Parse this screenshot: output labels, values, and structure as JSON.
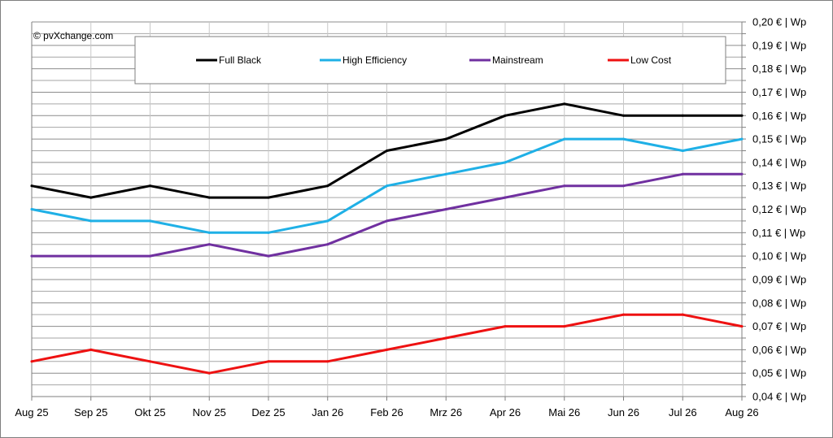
{
  "chart_data": {
    "type": "line",
    "title": "",
    "xlabel": "",
    "ylabel": "",
    "copyright": "© pvXchange.com",
    "categories": [
      "Aug 25",
      "Sep 25",
      "Okt 25",
      "Nov 25",
      "Dez 25",
      "Jan 26",
      "Feb 26",
      "Mrz 26",
      "Apr 26",
      "Mai 26",
      "Jun 26",
      "Jul 26",
      "Aug 26"
    ],
    "ylim": [
      0.04,
      0.2
    ],
    "y_ticks": [
      0.04,
      0.05,
      0.06,
      0.07,
      0.08,
      0.09,
      0.1,
      0.11,
      0.12,
      0.13,
      0.14,
      0.15,
      0.16,
      0.17,
      0.18,
      0.19,
      0.2
    ],
    "y_tick_labels": [
      "0,04 € | Wp",
      "0,05 € | Wp",
      "0,06 € | Wp",
      "0,07 € | Wp",
      "0,08 € | Wp",
      "0,09 € | Wp",
      "0,10 € | Wp",
      "0,11 € | Wp",
      "0,12 € | Wp",
      "0,13 € | Wp",
      "0,14 € | Wp",
      "0,15 € | Wp",
      "0,16 € | Wp",
      "0,17 € | Wp",
      "0,18 € | Wp",
      "0,19 € | Wp",
      "0,20 € | Wp"
    ],
    "y_minor_step": 0.005,
    "grid": true,
    "y_axis_position": "right",
    "legend_position": "top",
    "series": [
      {
        "name": "Full Black",
        "color": "#000000",
        "values": [
          0.13,
          0.125,
          0.13,
          0.125,
          0.125,
          0.13,
          0.145,
          0.15,
          0.16,
          0.165,
          0.16,
          0.16,
          0.16
        ]
      },
      {
        "name": "High Efficiency",
        "color": "#1fb0e6",
        "values": [
          0.12,
          0.115,
          0.115,
          0.11,
          0.11,
          0.115,
          0.13,
          0.135,
          0.14,
          0.15,
          0.15,
          0.145,
          0.15
        ]
      },
      {
        "name": "Mainstream",
        "color": "#7030a0",
        "values": [
          0.1,
          0.1,
          0.1,
          0.105,
          0.1,
          0.105,
          0.115,
          0.12,
          0.125,
          0.13,
          0.13,
          0.135,
          0.135
        ]
      },
      {
        "name": "Low Cost",
        "color": "#ee1111",
        "values": [
          0.055,
          0.06,
          0.055,
          0.05,
          0.055,
          0.055,
          0.06,
          0.065,
          0.07,
          0.07,
          0.075,
          0.075,
          0.07
        ]
      }
    ]
  }
}
